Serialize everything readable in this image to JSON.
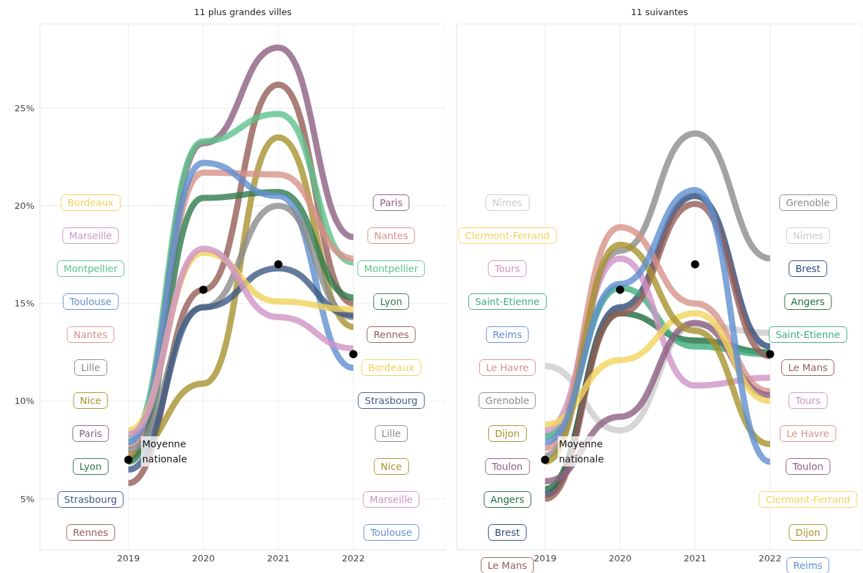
{
  "chart_data": [
    {
      "type": "line",
      "title": "11 plus grandes villes",
      "x": [
        2019,
        2020,
        2021,
        2022
      ],
      "xlim": [
        2017.82,
        2023.23
      ],
      "xticks": [
        2019,
        2020,
        2021,
        2022
      ],
      "ylim": [
        2.4,
        29.3
      ],
      "yticks": [
        {
          "value": 5,
          "label": "5%"
        },
        {
          "value": 10,
          "label": "10%"
        },
        {
          "value": 15,
          "label": "15%"
        },
        {
          "value": 20,
          "label": "20%"
        },
        {
          "value": 25,
          "label": "25%"
        }
      ],
      "grid": true,
      "marker": "none",
      "series": [
        {
          "name": "Paris",
          "color": "#8c5f82",
          "values": [
            7.1,
            23.2,
            28.1,
            18.4
          ]
        },
        {
          "name": "Rennes",
          "color": "#955e58",
          "values": [
            5.8,
            15.7,
            26.2,
            15.0
          ]
        },
        {
          "name": "Montpellier",
          "color": "#5fc28c",
          "values": [
            8.1,
            23.3,
            24.7,
            17.1
          ]
        },
        {
          "name": "Nice",
          "color": "#a8922e",
          "values": [
            7.3,
            10.9,
            23.5,
            13.8
          ]
        },
        {
          "name": "Nantes",
          "color": "#d7928a",
          "values": [
            7.7,
            21.7,
            21.6,
            17.3
          ]
        },
        {
          "name": "Lyon",
          "color": "#2f7a4e",
          "values": [
            6.9,
            20.4,
            20.7,
            15.3
          ]
        },
        {
          "name": "Toulouse",
          "color": "#5f8fd0",
          "values": [
            7.9,
            22.2,
            20.5,
            11.7
          ]
        },
        {
          "name": "Lille",
          "color": "#8c8c8c",
          "values": [
            7.5,
            14.8,
            20.0,
            14.3
          ]
        },
        {
          "name": "Strasbourg",
          "color": "#3d5a85",
          "values": [
            6.5,
            14.8,
            16.8,
            14.4
          ]
        },
        {
          "name": "Bordeaux",
          "color": "#f0d25a",
          "values": [
            8.5,
            17.6,
            15.1,
            14.7
          ]
        },
        {
          "name": "Marseille",
          "color": "#cf93c6",
          "values": [
            8.3,
            17.8,
            14.3,
            12.7
          ]
        },
        {
          "name": "Moyenne nationale",
          "type": "scatter",
          "marker": "circle",
          "color": "#000000",
          "values": [
            7.0,
            15.7,
            17.0,
            12.4
          ]
        }
      ]
    },
    {
      "type": "line",
      "title": "11 suivantes",
      "x": [
        2019,
        2020,
        2021,
        2022
      ],
      "xlim": [
        2017.82,
        2023.23
      ],
      "xticks": [
        2019,
        2020,
        2021,
        2022
      ],
      "ylim": [
        2.4,
        29.3
      ],
      "yticks": [
        {
          "value": 5,
          "label": null
        },
        {
          "value": 10,
          "label": null
        },
        {
          "value": 15,
          "label": null
        },
        {
          "value": 20,
          "label": null
        },
        {
          "value": 25,
          "label": null
        }
      ],
      "tick_labels": "x",
      "grid": true,
      "marker": "none",
      "series": [
        {
          "name": "Grenoble",
          "color": "#8c8c8c",
          "values": [
            7.2,
            17.7,
            23.7,
            17.3
          ]
        },
        {
          "name": "Nîmes",
          "color": "#cccccc",
          "values": [
            11.8,
            8.5,
            13.9,
            13.5
          ]
        },
        {
          "name": "Brest",
          "color": "#2d4a7a",
          "values": [
            5.2,
            14.8,
            20.5,
            12.8
          ]
        },
        {
          "name": "Angers",
          "color": "#1f6b3e",
          "values": [
            5.5,
            14.5,
            13.1,
            12.5
          ]
        },
        {
          "name": "Saint-Etienne",
          "color": "#3fae7c",
          "values": [
            8.2,
            15.8,
            12.8,
            12.4
          ]
        },
        {
          "name": "Le Mans",
          "color": "#955e58",
          "values": [
            5.0,
            14.5,
            20.1,
            12.3
          ]
        },
        {
          "name": "Tours",
          "color": "#cf93c6",
          "values": [
            8.5,
            17.3,
            10.8,
            11.2
          ]
        },
        {
          "name": "Le Havre",
          "color": "#d7928a",
          "values": [
            7.6,
            18.9,
            15.0,
            10.5
          ]
        },
        {
          "name": "Toulon",
          "color": "#8c5f82",
          "values": [
            5.9,
            9.2,
            14.0,
            10.3
          ]
        },
        {
          "name": "Clermont-Ferrand",
          "color": "#f2d45c",
          "values": [
            8.8,
            12.1,
            14.5,
            10.0
          ]
        },
        {
          "name": "Dijon",
          "color": "#a8922e",
          "values": [
            6.9,
            18.0,
            13.6,
            7.8
          ]
        },
        {
          "name": "Reims",
          "color": "#5f8fd0",
          "values": [
            7.9,
            16.0,
            20.8,
            6.9
          ]
        },
        {
          "name": "Moyenne nationale",
          "type": "scatter",
          "marker": "circle",
          "color": "#000000",
          "values": [
            7.0,
            15.7,
            17.0,
            12.4
          ]
        }
      ]
    }
  ]
}
